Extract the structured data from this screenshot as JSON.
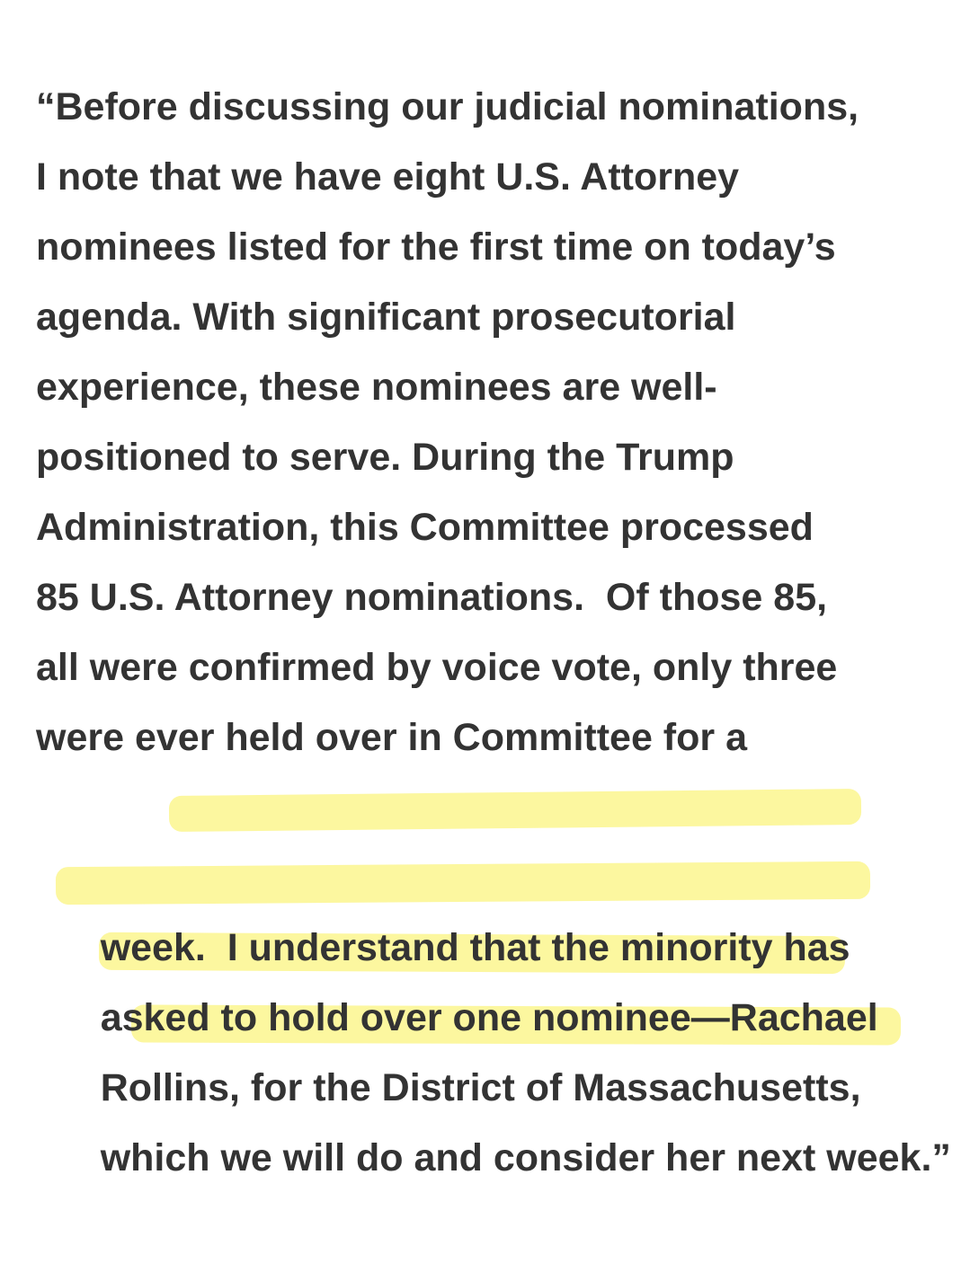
{
  "quote": {
    "lines": [
      "“Before discussing our judicial nominations,",
      "I note that we have eight U.S. Attorney",
      "nominees listed for the first time on today’s",
      "agenda. With significant prosecutorial",
      "experience, these nominees are well-",
      "positioned to serve. During the Trump",
      "Administration, this Committee processed",
      "85 U.S. Attorney nominations.  Of those 85,",
      "all were confirmed by voice vote, only three",
      "were ever held over in Committee for a",
      "week.  I understand that the minority has",
      "asked to hold over one nominee—Rachael",
      "Rollins, for the District of Massachusetts,",
      "which we will do and consider her next week.”"
    ]
  },
  "highlight": {
    "color": "#f7ee5a"
  }
}
